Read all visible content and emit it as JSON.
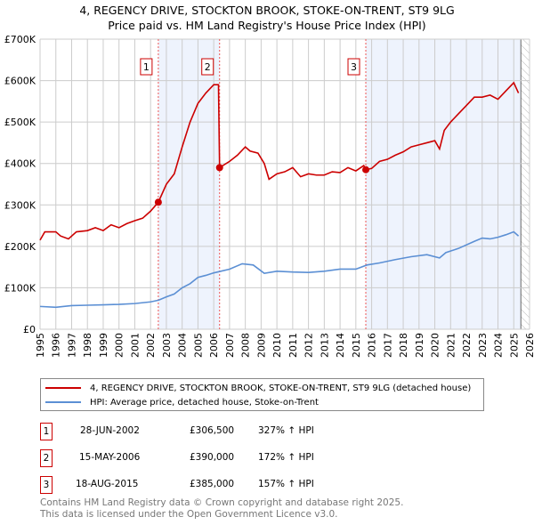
{
  "chart_data": {
    "type": "line",
    "title": "4, REGENCY DRIVE, STOCKTON BROOK, STOKE-ON-TRENT, ST9 9LG",
    "subtitle": "Price paid vs. HM Land Registry's House Price Index (HPI)",
    "xlim": [
      1995,
      2026
    ],
    "ylim": [
      0,
      700000
    ],
    "x_ticks": [
      "1995",
      "1996",
      "1997",
      "1998",
      "1999",
      "2000",
      "2001",
      "2002",
      "2003",
      "2004",
      "2005",
      "2006",
      "2007",
      "2008",
      "2009",
      "2010",
      "2011",
      "2012",
      "2013",
      "2014",
      "2015",
      "2016",
      "2017",
      "2018",
      "2019",
      "2020",
      "2021",
      "2022",
      "2023",
      "2024",
      "2025",
      "2026"
    ],
    "y_ticks": [
      {
        "v": 0,
        "label": "£0"
      },
      {
        "v": 100000,
        "label": "£100K"
      },
      {
        "v": 200000,
        "label": "£200K"
      },
      {
        "v": 300000,
        "label": "£300K"
      },
      {
        "v": 400000,
        "label": "£400K"
      },
      {
        "v": 500000,
        "label": "£500K"
      },
      {
        "v": 600000,
        "label": "£600K"
      },
      {
        "v": 700000,
        "label": "£700K"
      }
    ],
    "grid": true,
    "shaded_ranges": [
      [
        2002.49,
        2006.37
      ],
      [
        2015.63,
        2025.45
      ]
    ],
    "hatched_range": [
      2025.45,
      2026
    ],
    "series": [
      {
        "name": "4, REGENCY DRIVE, STOCKTON BROOK, STOKE-ON-TRENT, ST9 9LG (detached house)",
        "color": "#cc0000",
        "points": [
          [
            1995,
            215
          ],
          [
            1995.3,
            235
          ],
          [
            1996,
            235
          ],
          [
            1996.3,
            225
          ],
          [
            1996.8,
            218
          ],
          [
            1997.3,
            235
          ],
          [
            1998,
            238
          ],
          [
            1998.5,
            245
          ],
          [
            1999,
            238
          ],
          [
            1999.5,
            252
          ],
          [
            2000,
            245
          ],
          [
            2000.5,
            255
          ],
          [
            2001,
            262
          ],
          [
            2001.5,
            268
          ],
          [
            2002,
            285
          ],
          [
            2002.49,
            306.5
          ],
          [
            2003,
            350
          ],
          [
            2003.5,
            375
          ],
          [
            2004,
            440
          ],
          [
            2004.5,
            500
          ],
          [
            2005,
            545
          ],
          [
            2005.5,
            570
          ],
          [
            2006,
            590
          ],
          [
            2006.3,
            590
          ],
          [
            2006.37,
            390
          ],
          [
            2007,
            405
          ],
          [
            2007.5,
            420
          ],
          [
            2008,
            440
          ],
          [
            2008.3,
            430
          ],
          [
            2008.8,
            425
          ],
          [
            2009.2,
            400
          ],
          [
            2009.5,
            362
          ],
          [
            2010,
            375
          ],
          [
            2010.5,
            380
          ],
          [
            2011,
            390
          ],
          [
            2011.5,
            368
          ],
          [
            2012,
            375
          ],
          [
            2012.5,
            372
          ],
          [
            2013,
            372
          ],
          [
            2013.5,
            380
          ],
          [
            2014,
            378
          ],
          [
            2014.5,
            390
          ],
          [
            2015,
            382
          ],
          [
            2015.5,
            395
          ],
          [
            2015.63,
            385
          ],
          [
            2016,
            388
          ],
          [
            2016.5,
            405
          ],
          [
            2017,
            410
          ],
          [
            2017.5,
            420
          ],
          [
            2018,
            428
          ],
          [
            2018.5,
            440
          ],
          [
            2019,
            445
          ],
          [
            2019.5,
            450
          ],
          [
            2020,
            455
          ],
          [
            2020.3,
            435
          ],
          [
            2020.6,
            480
          ],
          [
            2021,
            500
          ],
          [
            2021.5,
            520
          ],
          [
            2022,
            540
          ],
          [
            2022.5,
            560
          ],
          [
            2023,
            560
          ],
          [
            2023.5,
            565
          ],
          [
            2024,
            555
          ],
          [
            2024.5,
            575
          ],
          [
            2025,
            595
          ],
          [
            2025.3,
            570
          ]
        ]
      },
      {
        "name": "HPI: Average price, detached house, Stoke-on-Trent",
        "color": "#5b8fd4",
        "points": [
          [
            1995,
            55
          ],
          [
            1996,
            53
          ],
          [
            1997,
            57
          ],
          [
            1998,
            58
          ],
          [
            1999,
            59
          ],
          [
            2000,
            60
          ],
          [
            2001,
            62
          ],
          [
            2002,
            66
          ],
          [
            2002.5,
            70
          ],
          [
            2003,
            78
          ],
          [
            2003.5,
            85
          ],
          [
            2004,
            100
          ],
          [
            2004.5,
            110
          ],
          [
            2005,
            125
          ],
          [
            2005.5,
            130
          ],
          [
            2006,
            136
          ],
          [
            2007,
            145
          ],
          [
            2007.8,
            158
          ],
          [
            2008.5,
            155
          ],
          [
            2009.2,
            135
          ],
          [
            2010,
            140
          ],
          [
            2011,
            138
          ],
          [
            2012,
            137
          ],
          [
            2013,
            140
          ],
          [
            2014,
            145
          ],
          [
            2015,
            145
          ],
          [
            2015.7,
            155
          ],
          [
            2016.5,
            160
          ],
          [
            2017.5,
            168
          ],
          [
            2018.5,
            175
          ],
          [
            2019.5,
            180
          ],
          [
            2020.3,
            172
          ],
          [
            2020.7,
            185
          ],
          [
            2021.5,
            195
          ],
          [
            2022.5,
            212
          ],
          [
            2023,
            220
          ],
          [
            2023.5,
            218
          ],
          [
            2024,
            222
          ],
          [
            2024.5,
            228
          ],
          [
            2025,
            235
          ],
          [
            2025.3,
            225
          ]
        ]
      }
    ],
    "point_units": "thousand GBP",
    "sales": [
      {
        "label": "1",
        "x": 2002.49,
        "y": 306.5,
        "date": "28-JUN-2002",
        "price": "£306,500",
        "hpi": "327% ↑ HPI"
      },
      {
        "label": "2",
        "x": 2006.37,
        "y": 390,
        "date": "15-MAY-2006",
        "price": "£390,000",
        "hpi": "172% ↑ HPI"
      },
      {
        "label": "3",
        "x": 2015.63,
        "y": 385,
        "date": "18-AUG-2015",
        "price": "£385,000",
        "hpi": "157% ↑ HPI"
      }
    ],
    "legend_position": "below"
  },
  "footer": {
    "line1": "Contains HM Land Registry data © Crown copyright and database right 2025.",
    "line2": "This data is licensed under the Open Government Licence v3.0."
  }
}
